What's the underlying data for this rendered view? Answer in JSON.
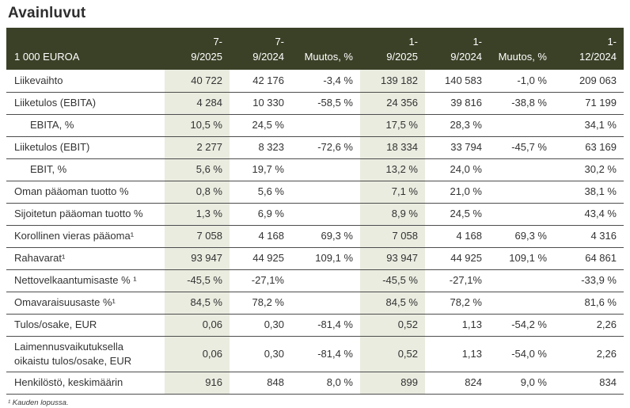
{
  "title": "Avainluvut",
  "footnote": "¹ Kauden lopussa.",
  "colors": {
    "header_bg": "#3b4127",
    "header_text": "#ffffff",
    "highlight_bg": "#e9ecdf",
    "body_text": "#333333",
    "row_border": "#4d4d4d"
  },
  "table": {
    "unit_label": "1 000 EUROA",
    "columns": [
      {
        "line1": "7-",
        "line2": "9/2025",
        "highlight": true
      },
      {
        "line1": "7-",
        "line2": "9/2024",
        "highlight": false
      },
      {
        "line1": "",
        "line2": "Muutos, %",
        "highlight": false
      },
      {
        "line1": "1-",
        "line2": "9/2025",
        "highlight": true
      },
      {
        "line1": "1-",
        "line2": "9/2024",
        "highlight": false
      },
      {
        "line1": "",
        "line2": "Muutos, %",
        "highlight": false
      },
      {
        "line1": "1-",
        "line2": "12/2024",
        "highlight": false
      }
    ],
    "rows": [
      {
        "label": "Liikevaihto",
        "indent": false,
        "values": [
          "40 722",
          "42 176",
          "-3,4 %",
          "139 182",
          "140 583",
          "-1,0 %",
          "209 063"
        ]
      },
      {
        "label": "Liiketulos (EBITA)",
        "indent": false,
        "values": [
          "4 284",
          "10 330",
          "-58,5 %",
          "24 356",
          "39 816",
          "-38,8 %",
          "71 199"
        ]
      },
      {
        "label": "EBITA, %",
        "indent": true,
        "values": [
          "10,5 %",
          "24,5 %",
          "",
          "17,5 %",
          "28,3 %",
          "",
          "34,1 %"
        ]
      },
      {
        "label": "Liiketulos (EBIT)",
        "indent": false,
        "values": [
          "2 277",
          "8 323",
          "-72,6 %",
          "18 334",
          "33 794",
          "-45,7 %",
          "63 169"
        ]
      },
      {
        "label": "EBIT, %",
        "indent": true,
        "values": [
          "5,6 %",
          "19,7 %",
          "",
          "13,2 %",
          "24,0 %",
          "",
          "30,2 %"
        ]
      },
      {
        "label": "Oman pääoman tuotto %",
        "indent": false,
        "values": [
          "0,8 %",
          "5,6 %",
          "",
          "7,1 %",
          "21,0 %",
          "",
          "38,1 %"
        ]
      },
      {
        "label": "Sijoitetun pääoman tuotto %",
        "indent": false,
        "values": [
          "1,3 %",
          "6,9 %",
          "",
          "8,9 %",
          "24,5 %",
          "",
          "43,4 %"
        ]
      },
      {
        "label": "Korollinen vieras pääoma¹",
        "indent": false,
        "values": [
          "7 058",
          "4 168",
          "69,3 %",
          "7 058",
          "4 168",
          "69,3 %",
          "4 316"
        ]
      },
      {
        "label": "Rahavarat¹",
        "indent": false,
        "values": [
          "93 947",
          "44 925",
          "109,1 %",
          "93 947",
          "44 925",
          "109,1 %",
          "64 861"
        ]
      },
      {
        "label": "Nettovelkaantumisaste % ¹",
        "indent": false,
        "values": [
          "-45,5 %",
          "-27,1%",
          "",
          "-45,5 %",
          "-27,1%",
          "",
          "-33,9 %"
        ]
      },
      {
        "label": "Omavaraisuusaste %¹",
        "indent": false,
        "values": [
          "84,5 %",
          "78,2 %",
          "",
          "84,5 %",
          "78,2 %",
          "",
          "81,6 %"
        ]
      },
      {
        "label": "Tulos/osake, EUR",
        "indent": false,
        "values": [
          "0,06",
          "0,30",
          "-81,4 %",
          "0,52",
          "1,13",
          "-54,2 %",
          "2,26"
        ]
      },
      {
        "label": "Laimennusvaikutuksella oikaistu tulos/osake, EUR",
        "indent": false,
        "values": [
          "0,06",
          "0,30",
          "-81,4 %",
          "0,52",
          "1,13",
          "-54,0 %",
          "2,26"
        ]
      },
      {
        "label": "Henkilöstö, keskimäärin",
        "indent": false,
        "values": [
          "916",
          "848",
          "8,0 %",
          "899",
          "824",
          "9,0 %",
          "834"
        ]
      }
    ]
  }
}
